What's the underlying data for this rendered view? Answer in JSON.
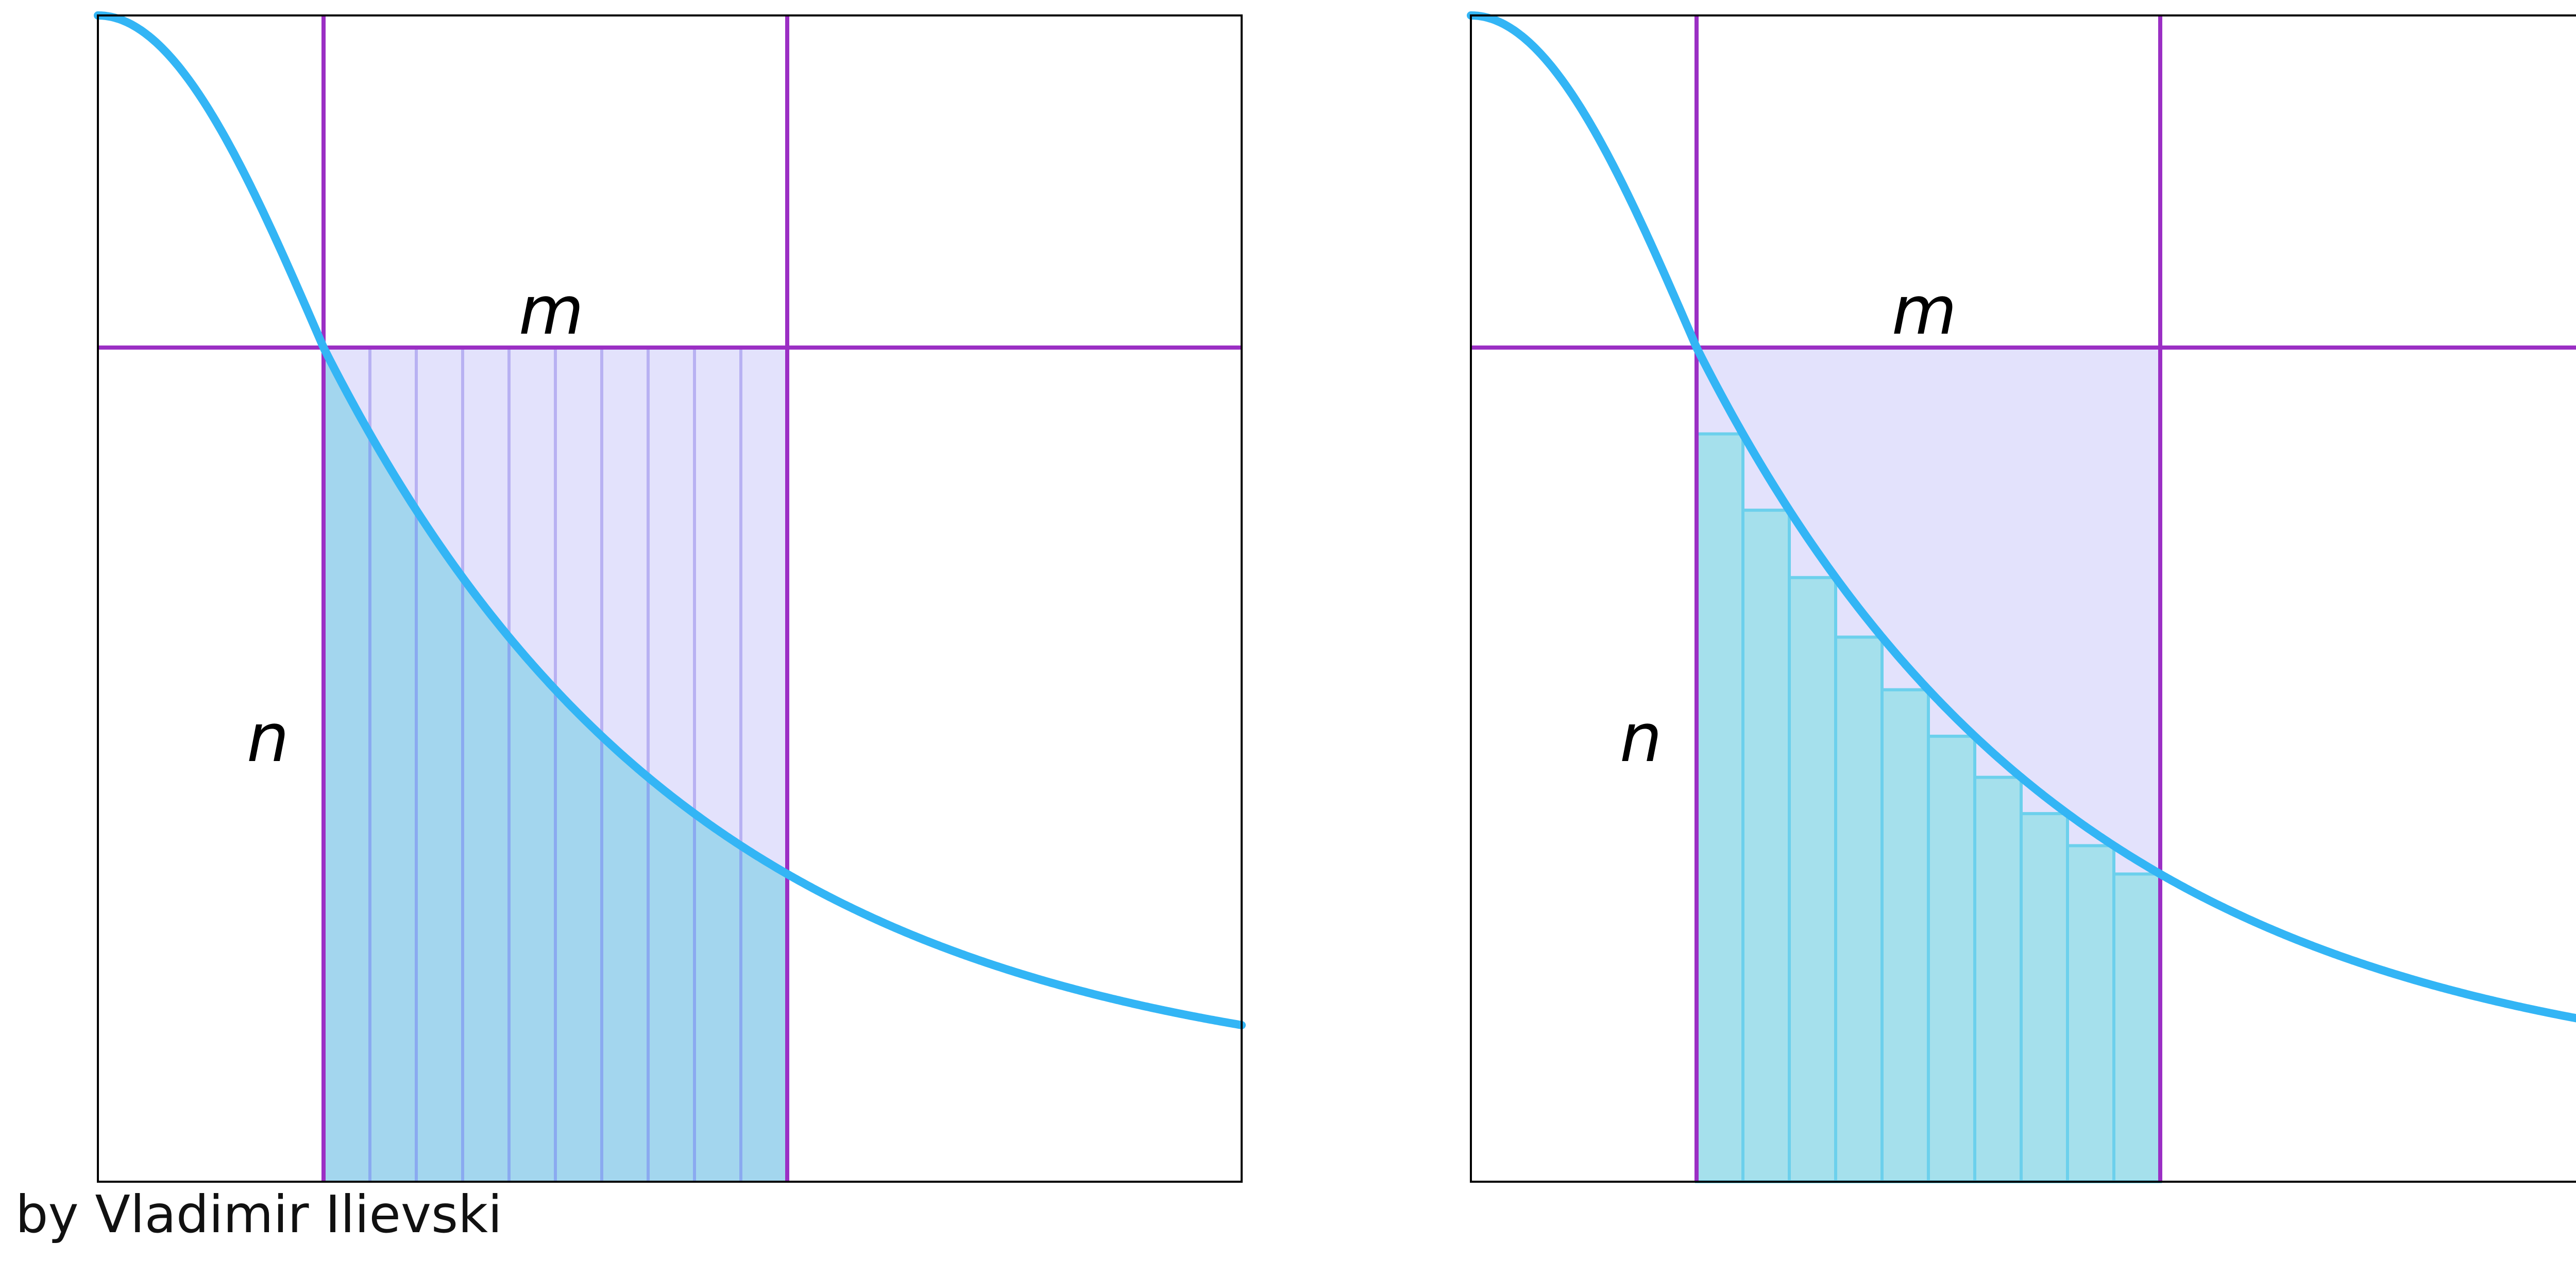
{
  "panels": [
    {
      "label_m": "m",
      "label_n": "n",
      "fill_mode": "under_curve"
    },
    {
      "label_m": "m",
      "label_n": "n",
      "fill_mode": "step_bars"
    }
  ],
  "credit": "by Vladimir Ilievski",
  "colors": {
    "curve": "#33b5f5",
    "grid_line": "#9b2fc4",
    "rect_fill": "#e3e2fc",
    "rect_stripe": "#b8b1f2",
    "under_curve_fill": "#a3d6ee",
    "under_curve_stripe": "#8aaaf0",
    "bar_fill": "#a5e0ec",
    "bar_stroke": "#6cd0ec",
    "frame": "#000000"
  },
  "strip_count": 10
}
